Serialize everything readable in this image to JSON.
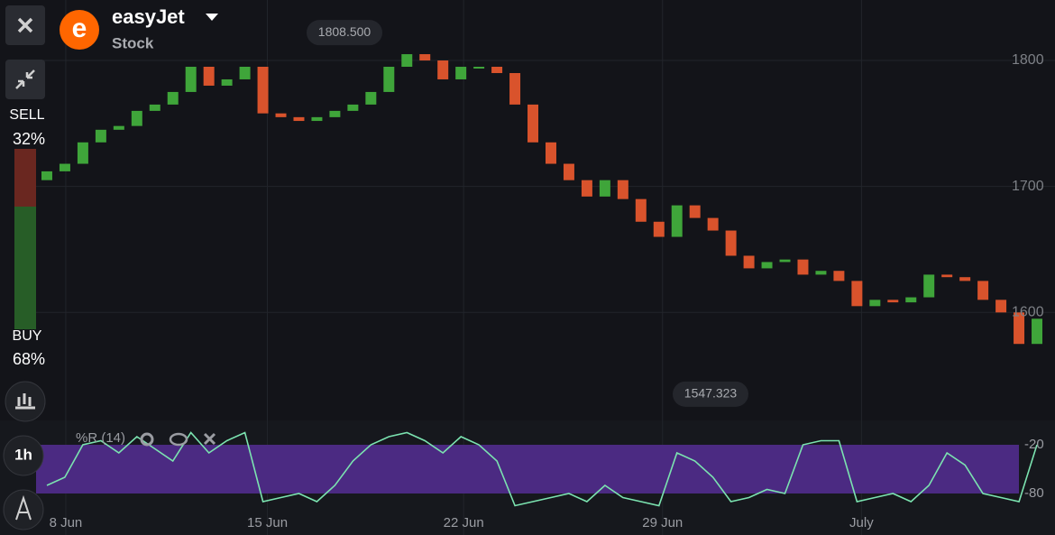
{
  "header": {
    "logo": "e",
    "name": "easyJet",
    "kind": "Stock"
  },
  "sentiment": {
    "sell_title": "SELL",
    "sell": {
      "value": 32,
      "label": "32%"
    },
    "buy_title": "BUY",
    "buy": {
      "value": 68,
      "label": "68%"
    }
  },
  "timeframe": "1h",
  "chart_data": [
    {
      "type": "candlestick",
      "open": [
        1705,
        1712,
        1718,
        1735,
        1745,
        1748,
        1760,
        1765,
        1775,
        1795,
        1780,
        1785,
        1795,
        1758,
        1755,
        1752,
        1755,
        1760,
        1765,
        1775,
        1795,
        1805,
        1800,
        1785,
        1795,
        1795,
        1790,
        1765,
        1735,
        1718,
        1705,
        1692,
        1705,
        1690,
        1672,
        1660,
        1685,
        1675,
        1665,
        1645,
        1635,
        1640,
        1642,
        1630,
        1633,
        1625,
        1605,
        1610,
        1608,
        1612,
        1630,
        1628,
        1625,
        1610,
        1600,
        1575
      ],
      "close": [
        1712,
        1718,
        1735,
        1745,
        1748,
        1760,
        1765,
        1775,
        1795,
        1780,
        1785,
        1795,
        1758,
        1755,
        1752,
        1755,
        1760,
        1765,
        1775,
        1795,
        1805,
        1800,
        1785,
        1795,
        1795,
        1790,
        1765,
        1735,
        1718,
        1705,
        1692,
        1705,
        1690,
        1672,
        1660,
        1685,
        1675,
        1665,
        1645,
        1635,
        1640,
        1642,
        1630,
        1633,
        1625,
        1605,
        1610,
        1608,
        1612,
        1630,
        1628,
        1625,
        1610,
        1600,
        1575,
        1595
      ],
      "up_color": "#3fa53a",
      "down_color": "#d9532c",
      "xlim": [
        0,
        56
      ],
      "xticks": [
        {
          "value": 1.55,
          "label": "8 Jun"
        },
        {
          "value": 12.75,
          "label": "15 Jun"
        },
        {
          "value": 23.65,
          "label": "22 Jun"
        },
        {
          "value": 34.7,
          "label": "29 Jun"
        },
        {
          "value": 45.75,
          "label": "July"
        }
      ],
      "ylim": [
        1515,
        1848
      ],
      "yticks": [
        1600,
        1700,
        1800
      ],
      "grid": true,
      "high_marker": {
        "value": 1808.5,
        "label": "1808.500"
      },
      "low_marker": {
        "value": 1547.323,
        "label": "1547.323"
      }
    },
    {
      "type": "line",
      "title": "%R (14)",
      "color": "#7be3b0",
      "values": [
        -70,
        -60,
        -20,
        -15,
        -30,
        -10,
        -25,
        -40,
        -5,
        -30,
        -15,
        -5,
        -90,
        -85,
        -80,
        -90,
        -70,
        -40,
        -20,
        -10,
        -5,
        -15,
        -30,
        -10,
        -20,
        -40,
        -95,
        -90,
        -85,
        -80,
        -90,
        -70,
        -85,
        -90,
        -95,
        -30,
        -40,
        -60,
        -90,
        -85,
        -75,
        -80,
        -20,
        -15,
        -15,
        -90,
        -85,
        -80,
        -90,
        -70,
        -30,
        -45,
        -80,
        -85,
        -90,
        -20
      ],
      "xlim": [
        0,
        56
      ],
      "ylim": [
        -100,
        0
      ],
      "yticks": [
        -20,
        -80
      ],
      "band": [
        -80,
        -20
      ],
      "band_color": "#4b2a82"
    }
  ]
}
